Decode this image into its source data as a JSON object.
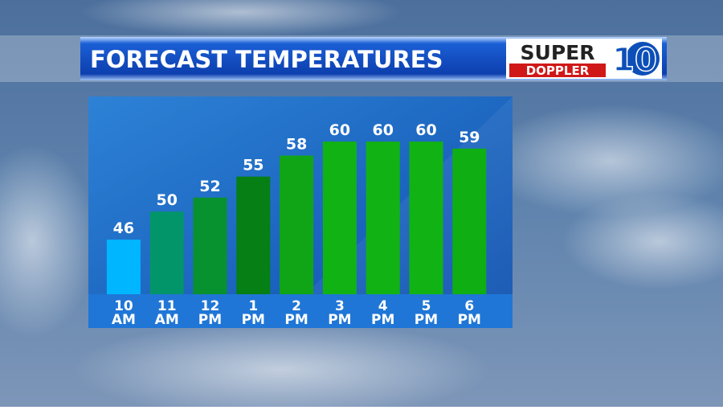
{
  "chart_data": {
    "type": "bar",
    "title": "FORECAST TEMPERATURES",
    "categories": [
      "10 AM",
      "11 AM",
      "12 PM",
      "1 PM",
      "2 PM",
      "3 PM",
      "4 PM",
      "5 PM",
      "6 PM"
    ],
    "values": [
      46,
      50,
      52,
      55,
      58,
      60,
      60,
      60,
      59
    ],
    "colors": [
      "#00b6ff",
      "#03956a",
      "#08912f",
      "#067f14",
      "#10a516",
      "#10b313",
      "#10b313",
      "#10b313",
      "#0fae12"
    ]
  },
  "logo": {
    "super": "SUPER",
    "doppler": "DOPPLER",
    "number": "10"
  }
}
